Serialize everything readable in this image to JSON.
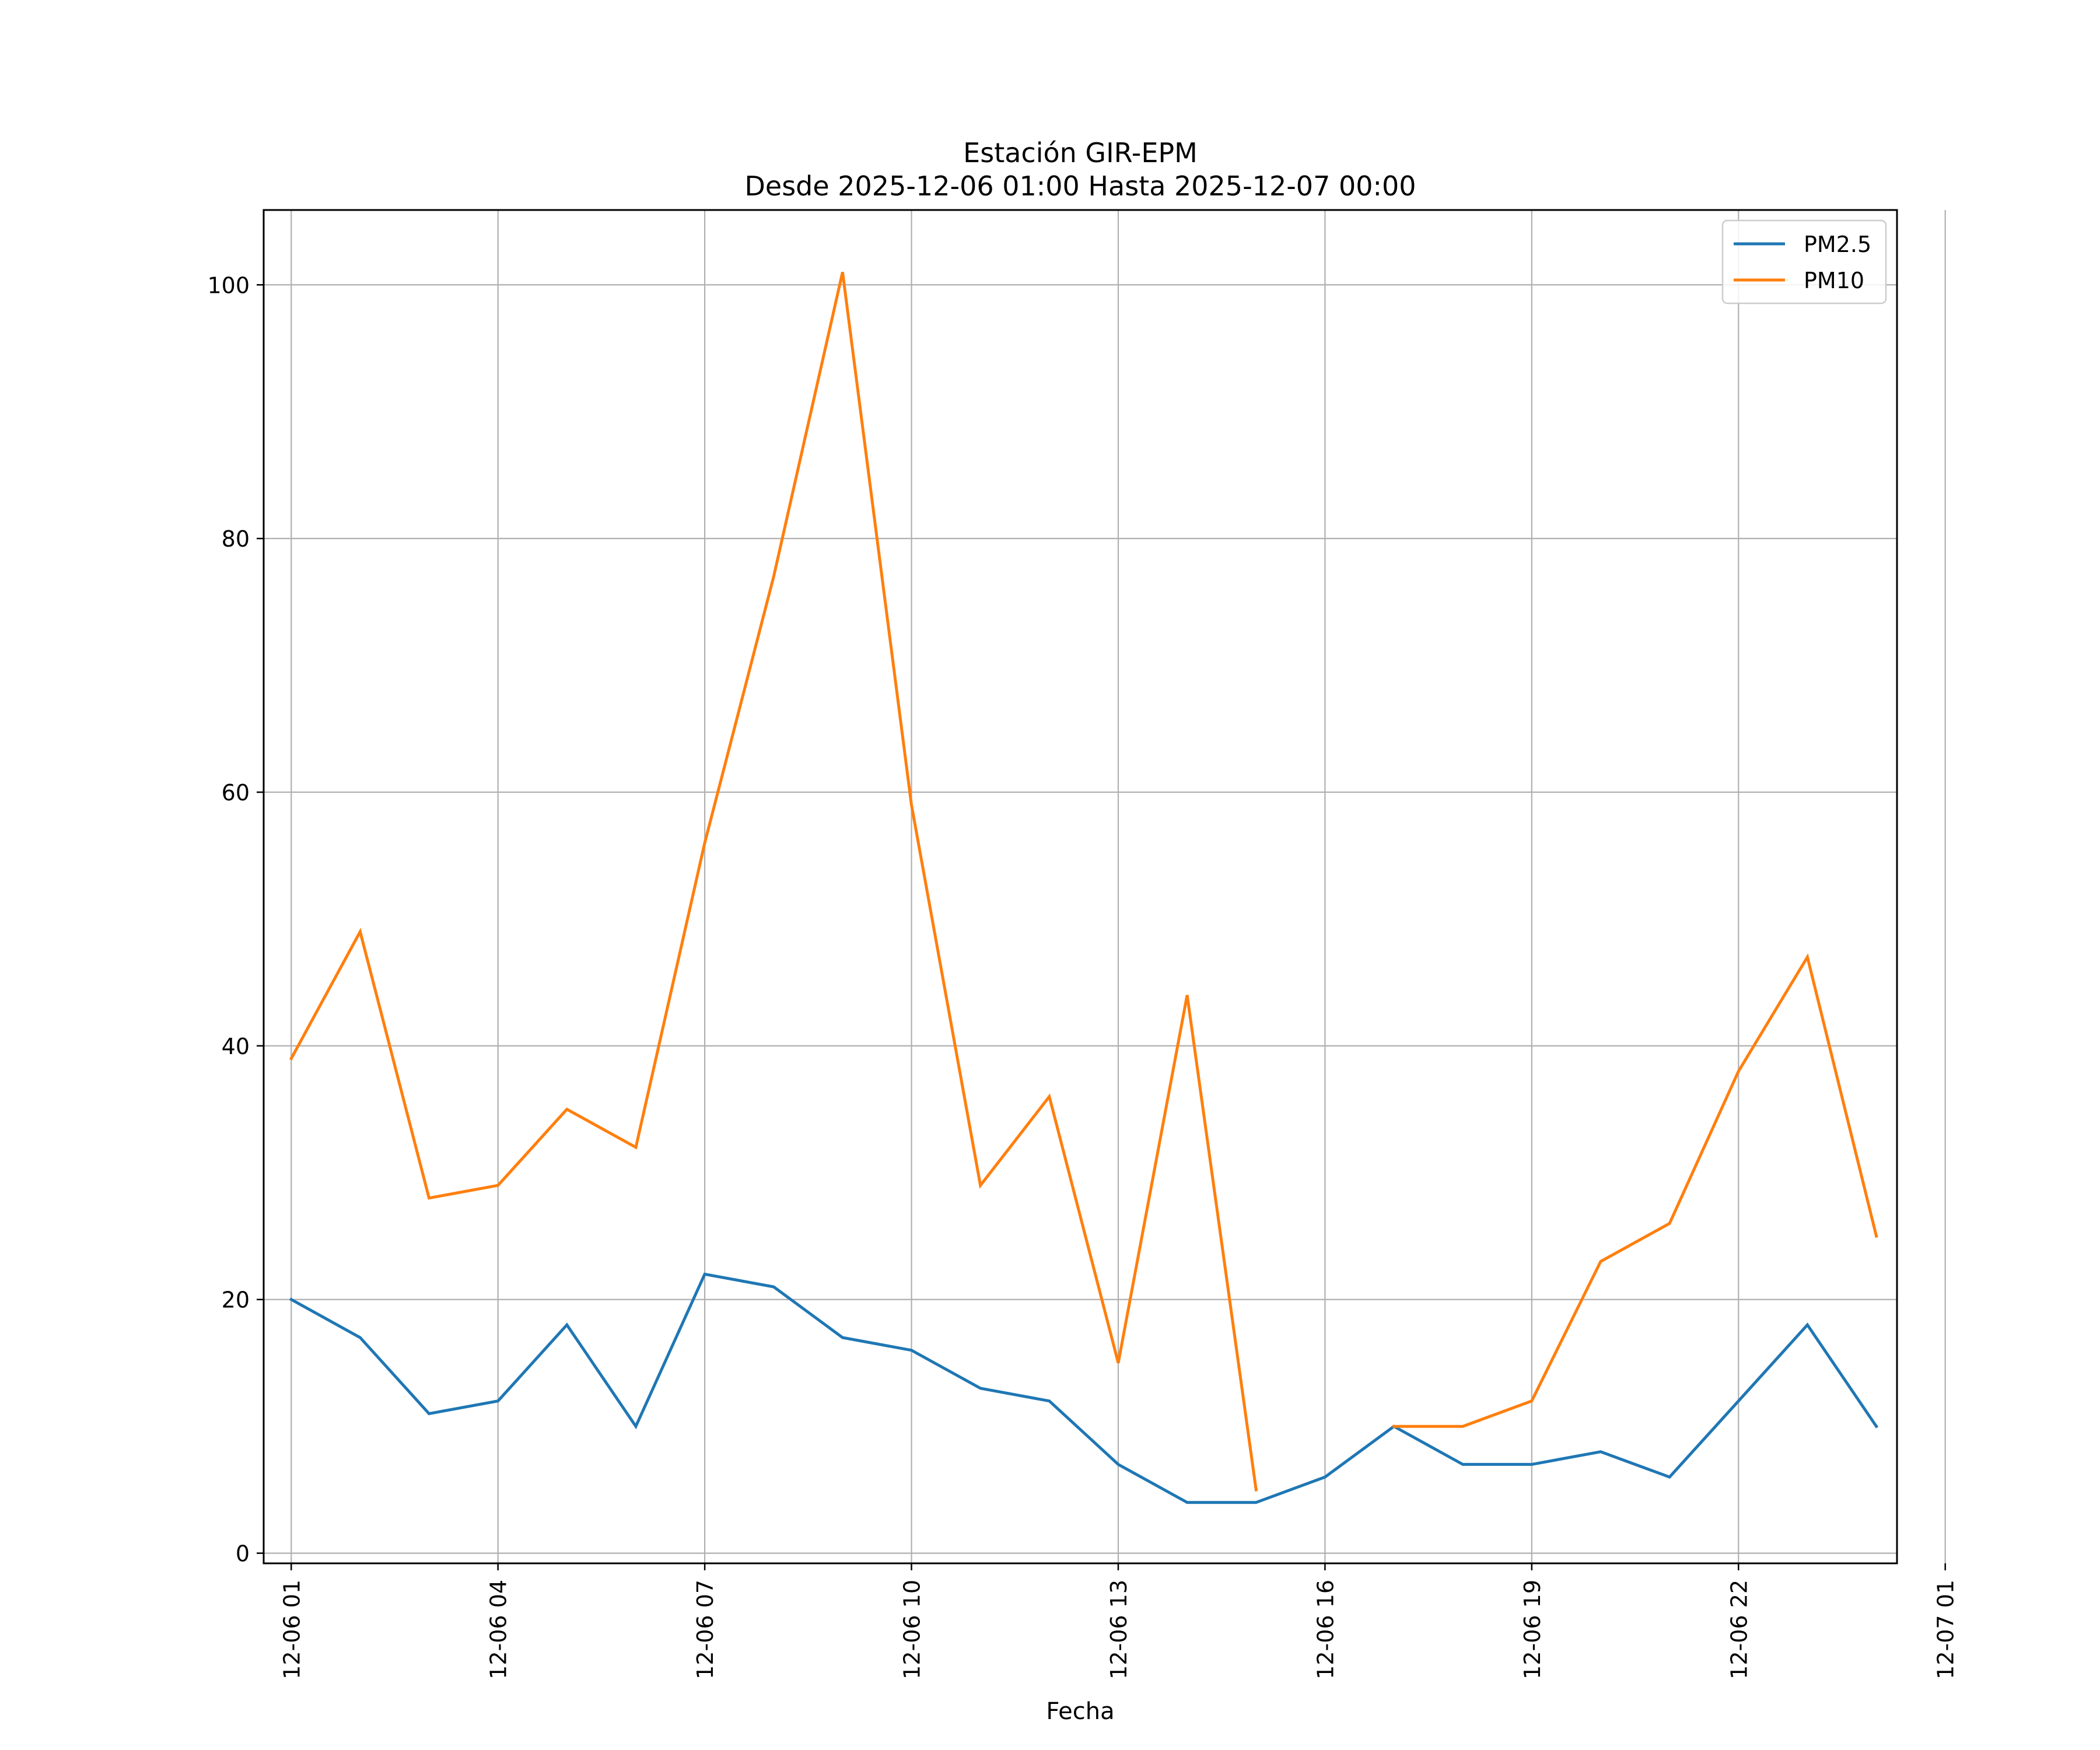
{
  "chart_data": {
    "type": "line",
    "title_line1": "Estación GIR-EPM",
    "title_line2": "Desde 2025-12-06 01:00 Hasta 2025-12-07 00:00",
    "xlabel": "Fecha",
    "ylabel": "",
    "x_unit": "hours since 2025-12-06 00:00",
    "xlim": [
      0.6,
      24.3
    ],
    "ylim": [
      -0.8,
      105.9
    ],
    "x": [
      1,
      2,
      3,
      4,
      5,
      6,
      7,
      8,
      9,
      10,
      11,
      12,
      13,
      14,
      15,
      16,
      17,
      18,
      19,
      20,
      21,
      22,
      23,
      24
    ],
    "x_ticks": [
      {
        "value": 1,
        "label": "12-06 01"
      },
      {
        "value": 4,
        "label": "12-06 04"
      },
      {
        "value": 7,
        "label": "12-06 07"
      },
      {
        "value": 10,
        "label": "12-06 10"
      },
      {
        "value": 13,
        "label": "12-06 13"
      },
      {
        "value": 16,
        "label": "12-06 16"
      },
      {
        "value": 19,
        "label": "12-06 19"
      },
      {
        "value": 22,
        "label": "12-06 22"
      },
      {
        "value": 25,
        "label": "12-07 01"
      }
    ],
    "y_ticks": [
      {
        "value": 0,
        "label": "0"
      },
      {
        "value": 20,
        "label": "20"
      },
      {
        "value": 40,
        "label": "40"
      },
      {
        "value": 60,
        "label": "60"
      },
      {
        "value": 80,
        "label": "80"
      },
      {
        "value": 100,
        "label": "100"
      }
    ],
    "grid": true,
    "legend_position": "top-right",
    "series": [
      {
        "name": "PM2.5",
        "color": "#1f77b4",
        "values": [
          20,
          17,
          11,
          12,
          18,
          10,
          22,
          21,
          17,
          16,
          13,
          12,
          7,
          4,
          4,
          6,
          10,
          7,
          7,
          8,
          6,
          12,
          18,
          10
        ]
      },
      {
        "name": "PM10",
        "color": "#ff7f0e",
        "values": [
          39,
          49,
          28,
          29,
          35,
          32,
          56,
          77,
          101,
          59,
          29,
          36,
          15,
          44,
          5,
          null,
          10,
          10,
          12,
          23,
          26,
          38,
          47,
          25
        ]
      }
    ]
  }
}
